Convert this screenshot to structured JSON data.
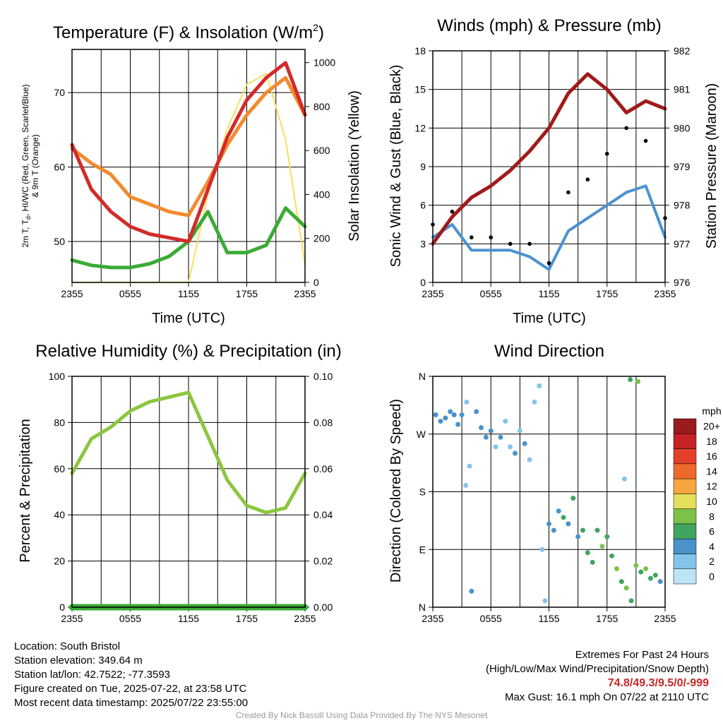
{
  "panels": {
    "temp": {
      "title": "Temperature (F) & Insolation (W/m",
      "title_sup": "2",
      "title_close": ")",
      "ylabel_line1": "2m T, T",
      "ylabel_sub": "d",
      "ylabel_line1_rest": ", HI/WC (Red, Green, Scarlet/Blue)",
      "ylabel_line2": "& 9m T (Orange)",
      "y2label": "Solar Insolation (Yellow)",
      "xlabel": "Time (UTC)",
      "yticks": [
        "50",
        "60",
        "70"
      ],
      "y2ticks": [
        "0",
        "200",
        "400",
        "600",
        "800",
        "1000"
      ]
    },
    "wind": {
      "title": "Winds (mph) & Pressure (mb)",
      "ylabel": "Sonic Wind & Gust (Blue, Black)",
      "y2label": "Station Pressure (Maroon)",
      "xlabel": "Time (UTC)",
      "yticks": [
        "0",
        "3",
        "6",
        "9",
        "12",
        "15",
        "18"
      ],
      "y2ticks": [
        "976",
        "977",
        "978",
        "979",
        "980",
        "981",
        "982"
      ]
    },
    "rh": {
      "title": "Relative Humidity (%) & Precipitation (in)",
      "ylabel": "Percent & Precipitation",
      "yticks": [
        "0",
        "20",
        "40",
        "60",
        "80",
        "100"
      ],
      "y2ticks": [
        "0.00",
        "0.02",
        "0.04",
        "0.06",
        "0.08",
        "0.10"
      ]
    },
    "dir": {
      "title": "Wind Direction",
      "ylabel": "Direction (Colored By Speed)",
      "yticks": [
        "N",
        "E",
        "S",
        "W",
        "N"
      ],
      "legend_title": "mph",
      "legend_labels": [
        "0",
        "2",
        "4",
        "6",
        "8",
        "10",
        "12",
        "14",
        "16",
        "18",
        "20+"
      ],
      "legend_colors": [
        "#bde4f4",
        "#85c4ea",
        "#4a92c8",
        "#41a460",
        "#7cc24a",
        "#e4e05a",
        "#f6a541",
        "#ee6a2c",
        "#e2402b",
        "#c42224",
        "#9a1b1e"
      ]
    }
  },
  "xticks": [
    "2355",
    "0555",
    "1155",
    "1755",
    "2355"
  ],
  "footer": {
    "location": "Location: South Bristol",
    "elevation": "Station elevation: 349.64 m",
    "latlon": "Station lat/lon: 42.7522; -77.3593",
    "created": "Figure created on Tue, 2025-07-22, at 23:58 UTC",
    "recent": "Most recent data timestamp: 2025/07/22 23:55:00",
    "extremes_title": "Extremes For Past 24 Hours",
    "extremes_keys": "(High/Low/Max Wind/Precipitation/Snow Depth)",
    "extremes_values": "74.8/49.3/9.5/0/-999",
    "max_gust": "Max Gust: 16.1 mph On 07/22 at 2110 UTC",
    "credit": "Created By Nick Bassill Using Data Provided By The NYS Mesonet"
  },
  "chart_data": [
    {
      "type": "line",
      "title": "Temperature (F) & Insolation (W/m2)",
      "xlabel": "Time (UTC)",
      "ylabel": "2m T, Td, HI/WC (Red, Green, Scarlet/Blue) & 9m T (Orange)",
      "y2label": "Solar Insolation (Yellow)",
      "x": [
        0,
        2,
        4,
        6,
        8,
        10,
        12,
        14,
        16,
        18,
        20,
        22,
        24
      ],
      "xlim": [
        0,
        24
      ],
      "ylim": [
        44.5,
        75.8
      ],
      "y2lim": [
        0,
        1060
      ],
      "series": [
        {
          "name": "2m T",
          "color": "#d42a2a",
          "axis": "y",
          "values": [
            63,
            57,
            54,
            52,
            51,
            50.5,
            50,
            57,
            64,
            69,
            72,
            74,
            67
          ]
        },
        {
          "name": "9m T",
          "color": "#f28a2e",
          "axis": "y",
          "values": [
            62.5,
            60.5,
            59,
            56,
            55,
            54,
            53.5,
            58,
            63,
            67,
            70,
            72,
            67
          ]
        },
        {
          "name": "Td",
          "color": "#3aaa35",
          "axis": "y",
          "values": [
            47.5,
            46.8,
            46.5,
            46.5,
            47,
            48,
            50,
            54,
            48.5,
            48.5,
            49.5,
            54.5,
            52
          ]
        },
        {
          "name": "Solar Insolation",
          "color": "#f6e05a",
          "axis": "y2",
          "values": [
            0,
            0,
            0,
            0,
            0,
            0,
            0,
            400,
            700,
            900,
            950,
            650,
            80
          ]
        }
      ]
    },
    {
      "type": "line",
      "title": "Winds (mph) & Pressure (mb)",
      "xlabel": "Time (UTC)",
      "ylabel": "Sonic Wind & Gust (Blue, Black)",
      "y2label": "Station Pressure (Maroon)",
      "x": [
        0,
        2,
        4,
        6,
        8,
        10,
        12,
        14,
        16,
        18,
        20,
        22,
        24
      ],
      "xlim": [
        0,
        24
      ],
      "ylim": [
        0,
        18
      ],
      "y2lim": [
        976,
        982
      ],
      "series": [
        {
          "name": "Sonic Wind",
          "color": "#4b92d0",
          "axis": "y",
          "values": [
            3.5,
            4.5,
            2.5,
            2.5,
            2.5,
            2,
            1,
            4,
            5,
            6,
            7,
            7.5,
            3.5
          ]
        },
        {
          "name": "Gust",
          "color": "#000000",
          "axis": "y",
          "values": [
            4.5,
            5.5,
            3.5,
            3.5,
            3,
            3,
            1.5,
            7,
            8,
            10,
            12,
            11,
            5
          ]
        },
        {
          "name": "Station Pressure",
          "color": "#a11a1a",
          "axis": "y2",
          "values": [
            977.0,
            977.7,
            978.2,
            978.5,
            978.9,
            979.4,
            980.0,
            980.9,
            981.4,
            981.0,
            980.4,
            980.7,
            980.5
          ]
        }
      ]
    },
    {
      "type": "line",
      "title": "Relative Humidity (%) & Precipitation (in)",
      "ylabel": "Percent & Precipitation",
      "x": [
        0,
        2,
        4,
        6,
        8,
        10,
        12,
        14,
        16,
        18,
        20,
        22,
        24
      ],
      "xlim": [
        0,
        24
      ],
      "ylim": [
        0,
        100
      ],
      "y2lim": [
        0,
        0.1
      ],
      "series": [
        {
          "name": "Relative Humidity",
          "color": "#8cc63f",
          "axis": "y",
          "values": [
            58,
            73,
            78,
            85,
            89,
            91,
            93,
            74,
            55,
            44,
            41,
            43,
            58
          ]
        },
        {
          "name": "Precipitation",
          "color": "#3aaa35",
          "axis": "y2",
          "values": [
            0,
            0,
            0,
            0,
            0,
            0,
            0,
            0,
            0,
            0,
            0,
            0,
            0
          ]
        }
      ]
    },
    {
      "type": "scatter",
      "title": "Wind Direction",
      "ylabel": "Direction (Colored By Speed)",
      "xlim": [
        0,
        24
      ],
      "ylim": [
        0,
        360
      ],
      "y_ticks_deg": [
        0,
        90,
        180,
        270,
        360
      ],
      "color_by": "speed (mph)",
      "points": [
        {
          "x": 0.3,
          "y": 300,
          "s": 4
        },
        {
          "x": 0.8,
          "y": 290,
          "s": 4
        },
        {
          "x": 1.3,
          "y": 295,
          "s": 4
        },
        {
          "x": 1.8,
          "y": 305,
          "s": 4
        },
        {
          "x": 2.2,
          "y": 300,
          "s": 4
        },
        {
          "x": 2.6,
          "y": 285,
          "s": 4
        },
        {
          "x": 3.0,
          "y": 300,
          "s": 4
        },
        {
          "x": 3.5,
          "y": 320,
          "s": 2
        },
        {
          "x": 3.8,
          "y": 220,
          "s": 2
        },
        {
          "x": 4.0,
          "y": 25,
          "s": 3
        },
        {
          "x": 4.5,
          "y": 305,
          "s": 3
        },
        {
          "x": 5.0,
          "y": 280,
          "s": 4
        },
        {
          "x": 5.5,
          "y": 265,
          "s": 3
        },
        {
          "x": 6.0,
          "y": 275,
          "s": 4
        },
        {
          "x": 6.5,
          "y": 250,
          "s": 2
        },
        {
          "x": 7.0,
          "y": 265,
          "s": 3
        },
        {
          "x": 7.5,
          "y": 290,
          "s": 2
        },
        {
          "x": 8.0,
          "y": 250,
          "s": 2
        },
        {
          "x": 8.5,
          "y": 240,
          "s": 3
        },
        {
          "x": 9.0,
          "y": 275,
          "s": 2
        },
        {
          "x": 9.5,
          "y": 255,
          "s": 4
        },
        {
          "x": 10.0,
          "y": 230,
          "s": 2
        },
        {
          "x": 10.5,
          "y": 320,
          "s": 1
        },
        {
          "x": 11.0,
          "y": 345,
          "s": 1
        },
        {
          "x": 11.3,
          "y": 90,
          "s": 2
        },
        {
          "x": 11.6,
          "y": 10,
          "s": 1
        },
        {
          "x": 12.0,
          "y": 130,
          "s": 4
        },
        {
          "x": 12.5,
          "y": 120,
          "s": 4
        },
        {
          "x": 13.0,
          "y": 150,
          "s": 4
        },
        {
          "x": 13.5,
          "y": 140,
          "s": 5
        },
        {
          "x": 14.0,
          "y": 130,
          "s": 4
        },
        {
          "x": 14.5,
          "y": 170,
          "s": 6
        },
        {
          "x": 15.0,
          "y": 110,
          "s": 4
        },
        {
          "x": 15.5,
          "y": 120,
          "s": 6
        },
        {
          "x": 16.0,
          "y": 85,
          "s": 5
        },
        {
          "x": 16.5,
          "y": 70,
          "s": 6
        },
        {
          "x": 17.0,
          "y": 120,
          "s": 6
        },
        {
          "x": 17.5,
          "y": 95,
          "s": 7
        },
        {
          "x": 18.0,
          "y": 110,
          "s": 6
        },
        {
          "x": 18.5,
          "y": 80,
          "s": 6
        },
        {
          "x": 19.0,
          "y": 60,
          "s": 7
        },
        {
          "x": 19.5,
          "y": 40,
          "s": 6
        },
        {
          "x": 20.0,
          "y": 30,
          "s": 7
        },
        {
          "x": 20.5,
          "y": 10,
          "s": 6
        },
        {
          "x": 21.0,
          "y": 65,
          "s": 7
        },
        {
          "x": 21.5,
          "y": 55,
          "s": 6
        },
        {
          "x": 22.0,
          "y": 60,
          "s": 7
        },
        {
          "x": 22.5,
          "y": 45,
          "s": 6
        },
        {
          "x": 23.0,
          "y": 50,
          "s": 5
        },
        {
          "x": 23.5,
          "y": 40,
          "s": 4
        },
        {
          "x": 20.4,
          "y": 355,
          "s": 6
        },
        {
          "x": 21.2,
          "y": 352,
          "s": 7
        },
        {
          "x": 19.8,
          "y": 200,
          "s": 2
        },
        {
          "x": 3.4,
          "y": 190,
          "s": 1
        }
      ]
    }
  ]
}
